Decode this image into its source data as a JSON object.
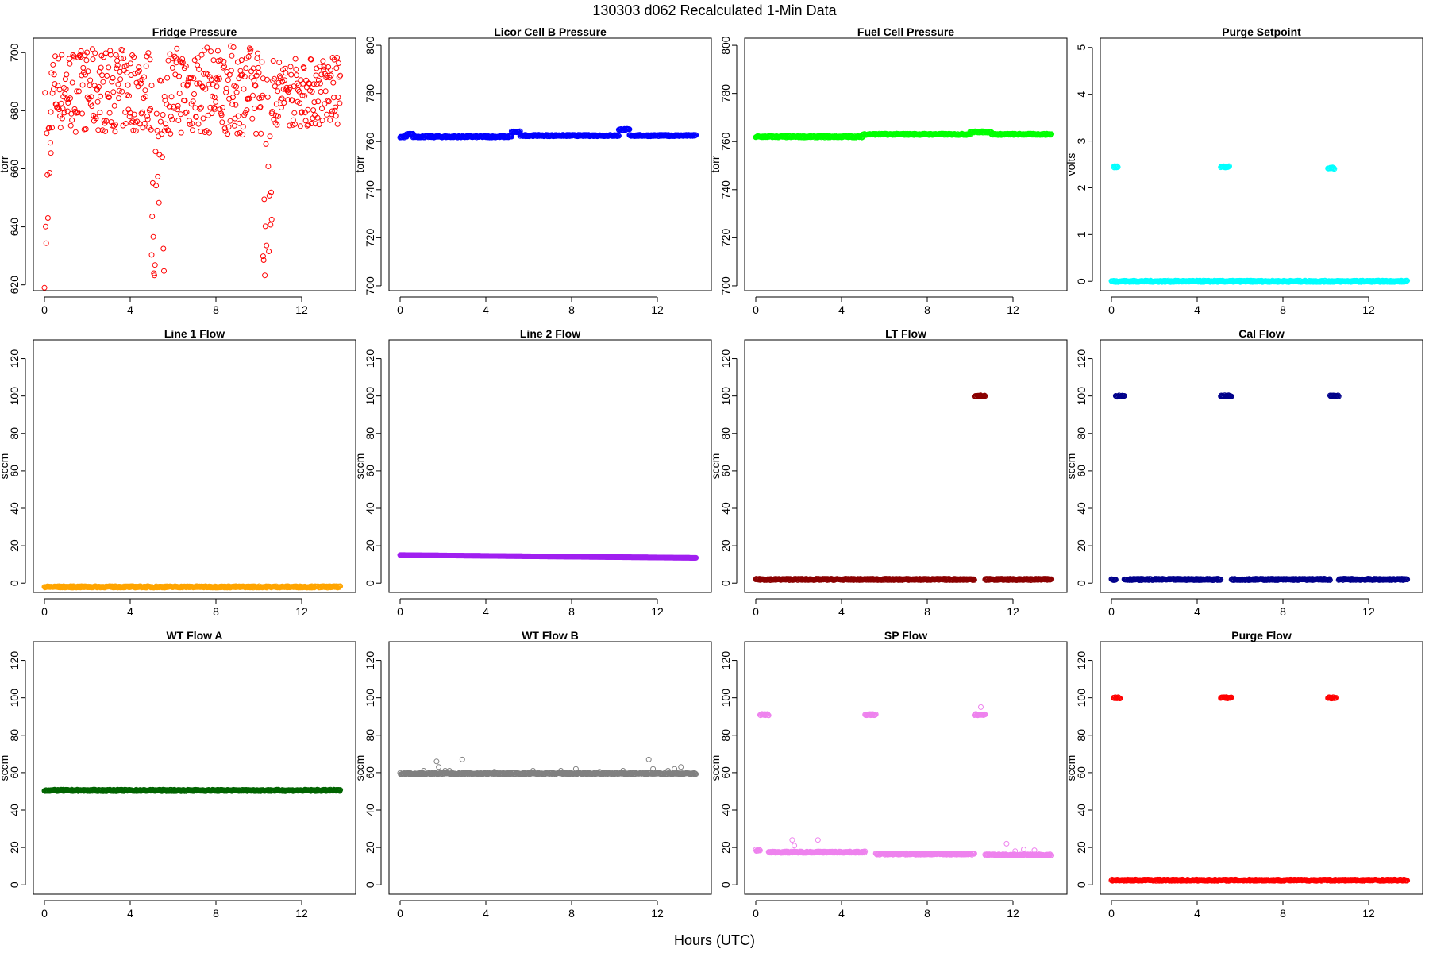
{
  "figure": {
    "title": "130303   d062   Recalculated 1-Min Data",
    "xlabel": "Hours (UTC)"
  },
  "chart_data": [
    {
      "type": "scatter",
      "title": "Fridge Pressure",
      "ylabel": "torr",
      "xlim": [
        0,
        14
      ],
      "ylim": [
        618,
        705
      ],
      "xticks": [
        0,
        4,
        8,
        12
      ],
      "yticks": [
        620,
        640,
        660,
        680,
        700
      ],
      "color": "#ff0000",
      "series": [
        {
          "pattern": "fridge",
          "values": [
            {
              "x_start": 0.0,
              "x_end": 0.3,
              "y_range": [
                619,
                692
              ]
            },
            {
              "x_start": 0.3,
              "x_end": 5.0,
              "y_range": [
                671,
                703
              ]
            },
            {
              "x_start": 5.0,
              "x_end": 5.6,
              "y_range": [
                620,
                693
              ]
            },
            {
              "x_start": 5.6,
              "x_end": 10.2,
              "y_range": [
                670,
                704
              ]
            },
            {
              "x_start": 10.2,
              "x_end": 10.6,
              "y_range": [
                620,
                693
              ]
            },
            {
              "x_start": 10.6,
              "x_end": 13.8,
              "y_range": [
                673,
                700
              ]
            }
          ]
        }
      ]
    },
    {
      "type": "scatter",
      "title": "Licor Cell B Pressure",
      "ylabel": "torr",
      "xlim": [
        0,
        14
      ],
      "ylim": [
        698,
        803
      ],
      "xticks": [
        0,
        4,
        8,
        12
      ],
      "yticks": [
        700,
        720,
        740,
        760,
        780,
        800
      ],
      "color": "#0000ff",
      "series": [
        {
          "pattern": "steps",
          "values": [
            {
              "x_start": 0.0,
              "x_end": 0.3,
              "y": 762
            },
            {
              "x_start": 0.3,
              "x_end": 0.6,
              "y": 763
            },
            {
              "x_start": 0.6,
              "x_end": 5.2,
              "y": 762
            },
            {
              "x_start": 5.2,
              "x_end": 5.6,
              "y": 764
            },
            {
              "x_start": 5.6,
              "x_end": 10.2,
              "y": 762.5
            },
            {
              "x_start": 10.2,
              "x_end": 10.7,
              "y": 765
            },
            {
              "x_start": 10.7,
              "x_end": 13.8,
              "y": 762.5
            }
          ]
        }
      ]
    },
    {
      "type": "scatter",
      "title": "Fuel Cell Pressure",
      "ylabel": "torr",
      "xlim": [
        0,
        14
      ],
      "ylim": [
        698,
        803
      ],
      "xticks": [
        0,
        4,
        8,
        12
      ],
      "yticks": [
        700,
        720,
        740,
        760,
        780,
        800
      ],
      "color": "#00ff00",
      "series": [
        {
          "pattern": "steps",
          "values": [
            {
              "x_start": 0.0,
              "x_end": 5.0,
              "y": 762
            },
            {
              "x_start": 5.0,
              "x_end": 10.0,
              "y": 763
            },
            {
              "x_start": 10.0,
              "x_end": 11.0,
              "y": 764
            },
            {
              "x_start": 11.0,
              "x_end": 13.8,
              "y": 763
            }
          ]
        }
      ]
    },
    {
      "type": "scatter",
      "title": "Purge Setpoint",
      "ylabel": "volts",
      "xlim": [
        0,
        14
      ],
      "ylim": [
        -0.2,
        5.2
      ],
      "xticks": [
        0,
        4,
        8,
        12
      ],
      "yticks": [
        0,
        1,
        2,
        3,
        4,
        5
      ],
      "color": "#00ffff",
      "series": [
        {
          "pattern": "steps",
          "values": [
            {
              "x_start": 0.0,
              "x_end": 13.8,
              "y": 0
            },
            {
              "x_start": 0.1,
              "x_end": 0.3,
              "y": 2.45
            },
            {
              "x_start": 5.1,
              "x_end": 5.5,
              "y": 2.45
            },
            {
              "x_start": 10.1,
              "x_end": 10.4,
              "y": 2.42
            }
          ]
        }
      ]
    },
    {
      "type": "scatter",
      "title": "Line 1 Flow",
      "ylabel": "sccm",
      "xlim": [
        0,
        14
      ],
      "ylim": [
        -5,
        130
      ],
      "xticks": [
        0,
        4,
        8,
        12
      ],
      "yticks": [
        0,
        20,
        40,
        60,
        80,
        100,
        120
      ],
      "color": "#ffa500",
      "series": [
        {
          "pattern": "steps",
          "values": [
            {
              "x_start": 0.0,
              "x_end": 13.8,
              "y": -2
            }
          ]
        }
      ]
    },
    {
      "type": "scatter",
      "title": "Line 2 Flow",
      "ylabel": "sccm",
      "xlim": [
        0,
        14
      ],
      "ylim": [
        -5,
        130
      ],
      "xticks": [
        0,
        4,
        8,
        12
      ],
      "yticks": [
        0,
        20,
        40,
        60,
        80,
        100,
        120
      ],
      "color": "#a020f0",
      "series": [
        {
          "pattern": "ramp",
          "values": [
            {
              "x_start": 0.0,
              "x_end": 13.8,
              "y_start": 15,
              "y_end": 13.5
            }
          ]
        }
      ]
    },
    {
      "type": "scatter",
      "title": "LT Flow",
      "ylabel": "sccm",
      "xlim": [
        0,
        14
      ],
      "ylim": [
        -5,
        130
      ],
      "xticks": [
        0,
        4,
        8,
        12
      ],
      "yticks": [
        0,
        20,
        40,
        60,
        80,
        100,
        120
      ],
      "color": "#8b0000",
      "series": [
        {
          "pattern": "steps",
          "values": [
            {
              "x_start": 0.0,
              "x_end": 10.2,
              "y": 2
            },
            {
              "x_start": 10.2,
              "x_end": 10.7,
              "y": 100
            },
            {
              "x_start": 10.7,
              "x_end": 13.8,
              "y": 2
            }
          ]
        }
      ]
    },
    {
      "type": "scatter",
      "title": "Cal Flow",
      "ylabel": "sccm",
      "xlim": [
        0,
        14
      ],
      "ylim": [
        -5,
        130
      ],
      "xticks": [
        0,
        4,
        8,
        12
      ],
      "yticks": [
        0,
        20,
        40,
        60,
        80,
        100,
        120
      ],
      "color": "#00008b",
      "series": [
        {
          "pattern": "steps",
          "values": [
            {
              "x_start": 0.0,
              "x_end": 0.2,
              "y": 2
            },
            {
              "x_start": 0.2,
              "x_end": 0.6,
              "y": 100
            },
            {
              "x_start": 0.6,
              "x_end": 5.1,
              "y": 2
            },
            {
              "x_start": 5.1,
              "x_end": 5.6,
              "y": 100
            },
            {
              "x_start": 5.6,
              "x_end": 10.2,
              "y": 2
            },
            {
              "x_start": 10.2,
              "x_end": 10.6,
              "y": 100
            },
            {
              "x_start": 10.6,
              "x_end": 13.8,
              "y": 2
            }
          ]
        }
      ]
    },
    {
      "type": "scatter",
      "title": "WT Flow A",
      "ylabel": "sccm",
      "xlim": [
        0,
        14
      ],
      "ylim": [
        -5,
        130
      ],
      "xticks": [
        0,
        4,
        8,
        12
      ],
      "yticks": [
        0,
        20,
        40,
        60,
        80,
        100,
        120
      ],
      "color": "#006400",
      "series": [
        {
          "pattern": "steps",
          "values": [
            {
              "x_start": 0.0,
              "x_end": 13.8,
              "y": 50.5
            }
          ]
        }
      ]
    },
    {
      "type": "scatter",
      "title": "WT Flow B",
      "ylabel": "sccm",
      "xlim": [
        0,
        14
      ],
      "ylim": [
        -5,
        130
      ],
      "xticks": [
        0,
        4,
        8,
        12
      ],
      "yticks": [
        0,
        20,
        40,
        60,
        80,
        100,
        120
      ],
      "color": "#808080",
      "series": [
        {
          "pattern": "steps",
          "values": [
            {
              "x_start": 0.0,
              "x_end": 13.8,
              "y": 59.5
            }
          ]
        },
        {
          "pattern": "points",
          "values": [
            [
              1.1,
              61
            ],
            [
              1.7,
              66
            ],
            [
              1.8,
              63
            ],
            [
              2.1,
              61
            ],
            [
              2.3,
              61
            ],
            [
              2.9,
              67
            ],
            [
              4.4,
              60.5
            ],
            [
              6.2,
              61
            ],
            [
              7.5,
              61
            ],
            [
              8.2,
              62
            ],
            [
              9.3,
              60.5
            ],
            [
              10.4,
              61
            ],
            [
              11.6,
              67
            ],
            [
              11.8,
              62
            ],
            [
              12.5,
              61
            ],
            [
              12.8,
              62
            ],
            [
              13.1,
              63
            ]
          ]
        }
      ]
    },
    {
      "type": "scatter",
      "title": "SP Flow",
      "ylabel": "sccm",
      "xlim": [
        0,
        14
      ],
      "ylim": [
        -5,
        130
      ],
      "xticks": [
        0,
        4,
        8,
        12
      ],
      "yticks": [
        0,
        20,
        40,
        60,
        80,
        100,
        120
      ],
      "color": "#ee82ee",
      "series": [
        {
          "pattern": "steps",
          "values": [
            {
              "x_start": 0.0,
              "x_end": 0.2,
              "y": 18.5
            },
            {
              "x_start": 0.2,
              "x_end": 0.6,
              "y": 91
            },
            {
              "x_start": 0.6,
              "x_end": 5.1,
              "y": 17.5
            },
            {
              "x_start": 5.1,
              "x_end": 5.6,
              "y": 91
            },
            {
              "x_start": 5.6,
              "x_end": 10.2,
              "y": 16.5
            },
            {
              "x_start": 10.2,
              "x_end": 10.7,
              "y": 91
            },
            {
              "x_start": 10.7,
              "x_end": 13.8,
              "y": 16
            }
          ]
        },
        {
          "pattern": "points",
          "values": [
            [
              1.7,
              24
            ],
            [
              1.8,
              21
            ],
            [
              2.9,
              24
            ],
            [
              10.5,
              95
            ],
            [
              11.7,
              22
            ],
            [
              12.1,
              18
            ],
            [
              12.5,
              19
            ],
            [
              13.0,
              18.5
            ]
          ]
        }
      ]
    },
    {
      "type": "scatter",
      "title": "Purge Flow",
      "ylabel": "sccm",
      "xlim": [
        0,
        14
      ],
      "ylim": [
        -5,
        130
      ],
      "xticks": [
        0,
        4,
        8,
        12
      ],
      "yticks": [
        0,
        20,
        40,
        60,
        80,
        100,
        120
      ],
      "color": "#ff0000",
      "series": [
        {
          "pattern": "steps",
          "values": [
            {
              "x_start": 0.0,
              "x_end": 13.8,
              "y": 2.5
            },
            {
              "x_start": 0.1,
              "x_end": 0.4,
              "y": 100
            },
            {
              "x_start": 5.1,
              "x_end": 5.6,
              "y": 100
            },
            {
              "x_start": 10.1,
              "x_end": 10.5,
              "y": 100
            }
          ]
        }
      ]
    }
  ]
}
